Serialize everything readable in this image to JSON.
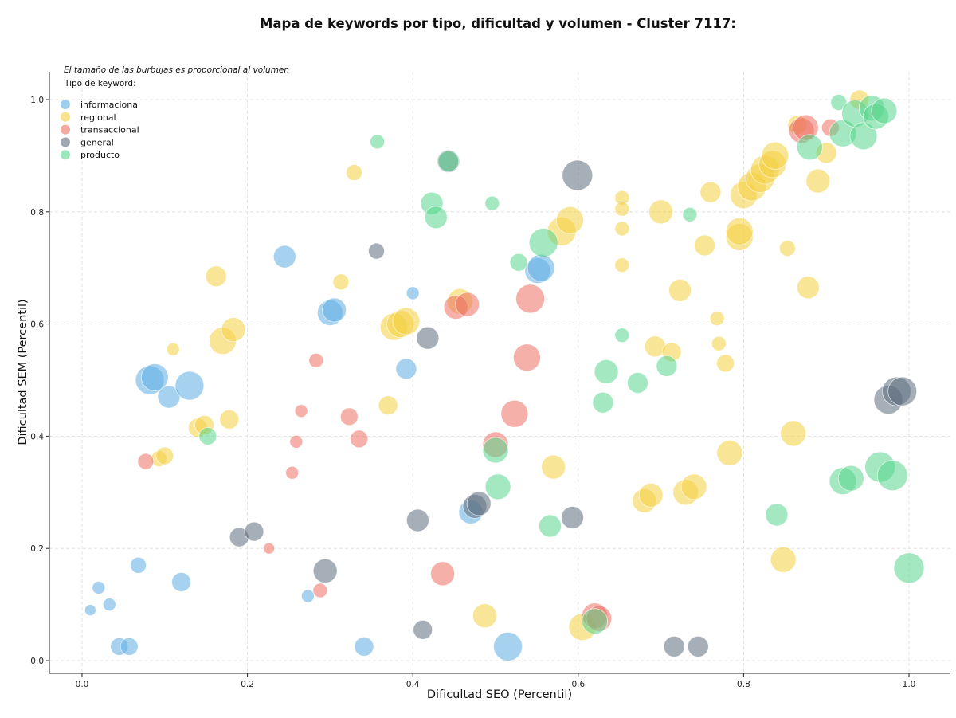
{
  "chart_data": {
    "type": "scatter",
    "title": "Mapa de keywords por tipo, dificultad y volumen - Cluster 7117:",
    "xlabel": "Dificultad SEO (Percentil)",
    "ylabel": "Dificultad SEM (Percentil)",
    "xlim": [
      -0.04,
      1.05
    ],
    "ylim": [
      -0.02,
      1.05
    ],
    "xticks": [
      "0.0",
      "0.2",
      "0.4",
      "0.6",
      "0.8",
      "1.0"
    ],
    "yticks": [
      "0.0",
      "0.2",
      "0.4",
      "0.6",
      "0.8",
      "1.0"
    ],
    "grid": true,
    "note": "El tamaño de las burbujas es proporcional al volumen",
    "legend": {
      "title": "Tipo de keyword:",
      "placement": "top-left"
    },
    "series": [
      {
        "name": "informacional",
        "color": "#5dade2",
        "points": [
          [
            0.01,
            0.09,
            7
          ],
          [
            0.02,
            0.13,
            8
          ],
          [
            0.033,
            0.1,
            8
          ],
          [
            0.045,
            0.025,
            11
          ],
          [
            0.057,
            0.025,
            11
          ],
          [
            0.068,
            0.17,
            10
          ],
          [
            0.082,
            0.5,
            18
          ],
          [
            0.088,
            0.505,
            17
          ],
          [
            0.105,
            0.47,
            14
          ],
          [
            0.12,
            0.14,
            12
          ],
          [
            0.13,
            0.49,
            18
          ],
          [
            0.245,
            0.72,
            14
          ],
          [
            0.273,
            0.115,
            8
          ],
          [
            0.3,
            0.62,
            16
          ],
          [
            0.305,
            0.625,
            15
          ],
          [
            0.341,
            0.025,
            12
          ],
          [
            0.392,
            0.52,
            13
          ],
          [
            0.4,
            0.655,
            8
          ],
          [
            0.47,
            0.265,
            15
          ],
          [
            0.515,
            0.025,
            18
          ],
          [
            0.551,
            0.695,
            16
          ],
          [
            0.555,
            0.7,
            17
          ]
        ]
      },
      {
        "name": "regional",
        "color": "#f4d03f",
        "points": [
          [
            0.093,
            0.36,
            10
          ],
          [
            0.1,
            0.365,
            11
          ],
          [
            0.11,
            0.555,
            8
          ],
          [
            0.14,
            0.415,
            12
          ],
          [
            0.148,
            0.42,
            12
          ],
          [
            0.162,
            0.685,
            13
          ],
          [
            0.17,
            0.57,
            17
          ],
          [
            0.178,
            0.43,
            12
          ],
          [
            0.183,
            0.59,
            15
          ],
          [
            0.313,
            0.675,
            10
          ],
          [
            0.329,
            0.87,
            10
          ],
          [
            0.37,
            0.455,
            12
          ],
          [
            0.377,
            0.595,
            17
          ],
          [
            0.385,
            0.6,
            17
          ],
          [
            0.392,
            0.605,
            17
          ],
          [
            0.457,
            0.64,
            16
          ],
          [
            0.487,
            0.08,
            15
          ],
          [
            0.57,
            0.345,
            15
          ],
          [
            0.58,
            0.765,
            18
          ],
          [
            0.59,
            0.785,
            17
          ],
          [
            0.605,
            0.06,
            17
          ],
          [
            0.653,
            0.825,
            9
          ],
          [
            0.653,
            0.805,
            9
          ],
          [
            0.653,
            0.77,
            9
          ],
          [
            0.653,
            0.705,
            9
          ],
          [
            0.68,
            0.285,
            15
          ],
          [
            0.688,
            0.295,
            15
          ],
          [
            0.693,
            0.56,
            13
          ],
          [
            0.7,
            0.8,
            15
          ],
          [
            0.713,
            0.55,
            12
          ],
          [
            0.723,
            0.66,
            14
          ],
          [
            0.73,
            0.3,
            16
          ],
          [
            0.74,
            0.31,
            16
          ],
          [
            0.753,
            0.74,
            13
          ],
          [
            0.76,
            0.835,
            13
          ],
          [
            0.768,
            0.61,
            9
          ],
          [
            0.77,
            0.565,
            9
          ],
          [
            0.778,
            0.53,
            11
          ],
          [
            0.783,
            0.37,
            16
          ],
          [
            0.795,
            0.755,
            17
          ],
          [
            0.795,
            0.765,
            17
          ],
          [
            0.8,
            0.83,
            17
          ],
          [
            0.81,
            0.845,
            18
          ],
          [
            0.82,
            0.86,
            18
          ],
          [
            0.826,
            0.875,
            18
          ],
          [
            0.835,
            0.885,
            17
          ],
          [
            0.838,
            0.9,
            17
          ],
          [
            0.848,
            0.18,
            16
          ],
          [
            0.853,
            0.735,
            10
          ],
          [
            0.86,
            0.405,
            16
          ],
          [
            0.878,
            0.665,
            14
          ],
          [
            0.865,
            0.955,
            12
          ],
          [
            0.89,
            0.855,
            15
          ],
          [
            0.9,
            0.905,
            13
          ],
          [
            0.94,
            1.0,
            12
          ]
        ]
      },
      {
        "name": "transaccional",
        "color": "#ec7063",
        "points": [
          [
            0.077,
            0.355,
            10
          ],
          [
            0.226,
            0.2,
            7
          ],
          [
            0.254,
            0.335,
            8
          ],
          [
            0.259,
            0.39,
            8
          ],
          [
            0.265,
            0.445,
            8
          ],
          [
            0.283,
            0.535,
            9
          ],
          [
            0.288,
            0.125,
            9
          ],
          [
            0.323,
            0.435,
            11
          ],
          [
            0.335,
            0.395,
            11
          ],
          [
            0.436,
            0.155,
            15
          ],
          [
            0.452,
            0.63,
            15
          ],
          [
            0.466,
            0.635,
            15
          ],
          [
            0.5,
            0.385,
            16
          ],
          [
            0.523,
            0.44,
            17
          ],
          [
            0.538,
            0.54,
            17
          ],
          [
            0.542,
            0.645,
            18
          ],
          [
            0.62,
            0.08,
            16
          ],
          [
            0.625,
            0.075,
            16
          ],
          [
            0.87,
            0.945,
            16
          ],
          [
            0.875,
            0.95,
            16
          ],
          [
            0.905,
            0.95,
            11
          ]
        ]
      },
      {
        "name": "general",
        "color": "#5d6d7e",
        "points": [
          [
            0.19,
            0.22,
            12
          ],
          [
            0.208,
            0.23,
            12
          ],
          [
            0.294,
            0.16,
            15
          ],
          [
            0.356,
            0.73,
            10
          ],
          [
            0.406,
            0.25,
            14
          ],
          [
            0.412,
            0.055,
            12
          ],
          [
            0.418,
            0.575,
            14
          ],
          [
            0.443,
            0.89,
            14
          ],
          [
            0.475,
            0.275,
            15
          ],
          [
            0.48,
            0.28,
            15
          ],
          [
            0.593,
            0.255,
            14
          ],
          [
            0.599,
            0.865,
            19
          ],
          [
            0.716,
            0.025,
            13
          ],
          [
            0.745,
            0.025,
            13
          ],
          [
            0.975,
            0.465,
            18
          ],
          [
            0.985,
            0.48,
            18
          ],
          [
            0.992,
            0.48,
            18
          ]
        ]
      },
      {
        "name": "producto",
        "color": "#58d68d",
        "points": [
          [
            0.152,
            0.4,
            11
          ],
          [
            0.357,
            0.925,
            9
          ],
          [
            0.423,
            0.815,
            14
          ],
          [
            0.428,
            0.79,
            14
          ],
          [
            0.443,
            0.89,
            13
          ],
          [
            0.496,
            0.815,
            9
          ],
          [
            0.5,
            0.375,
            16
          ],
          [
            0.503,
            0.31,
            16
          ],
          [
            0.528,
            0.71,
            11
          ],
          [
            0.558,
            0.745,
            18
          ],
          [
            0.566,
            0.24,
            14
          ],
          [
            0.62,
            0.07,
            16
          ],
          [
            0.63,
            0.46,
            13
          ],
          [
            0.634,
            0.515,
            15
          ],
          [
            0.653,
            0.58,
            9
          ],
          [
            0.672,
            0.495,
            13
          ],
          [
            0.707,
            0.525,
            13
          ],
          [
            0.735,
            0.795,
            9
          ],
          [
            0.84,
            0.26,
            14
          ],
          [
            0.88,
            0.915,
            16
          ],
          [
            0.915,
            0.995,
            10
          ],
          [
            0.92,
            0.94,
            17
          ],
          [
            0.92,
            0.32,
            17
          ],
          [
            0.93,
            0.325,
            16
          ],
          [
            0.935,
            0.975,
            17
          ],
          [
            0.945,
            0.935,
            17
          ],
          [
            0.955,
            0.985,
            16
          ],
          [
            0.96,
            0.97,
            16
          ],
          [
            0.965,
            0.345,
            19
          ],
          [
            0.97,
            0.98,
            16
          ],
          [
            0.98,
            0.33,
            19
          ],
          [
            1.0,
            0.165,
            19
          ]
        ]
      }
    ]
  }
}
